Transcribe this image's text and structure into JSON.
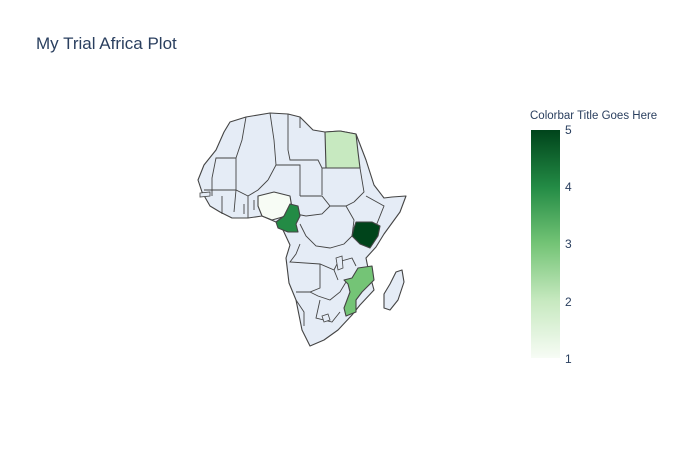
{
  "title": "My Trial Africa Plot",
  "colorbar": {
    "title": "Colorbar Title Goes Here",
    "ticks": [
      "5",
      "4",
      "3",
      "2",
      "1"
    ],
    "min": 1,
    "max": 5,
    "colorscale": [
      "#f7fcf5",
      "#c7e9c0",
      "#74c476",
      "#238b45",
      "#00441b"
    ]
  },
  "map": {
    "scope": "africa",
    "land_color": "#e5ecf6",
    "border_color": "#444444",
    "highlighted_countries": [
      {
        "name": "Nigeria",
        "value": 1
      },
      {
        "name": "Egypt",
        "value": 2
      },
      {
        "name": "Mozambique",
        "value": 3
      },
      {
        "name": "Cameroon",
        "value": 4
      },
      {
        "name": "Kenya",
        "value": 5
      }
    ]
  }
}
